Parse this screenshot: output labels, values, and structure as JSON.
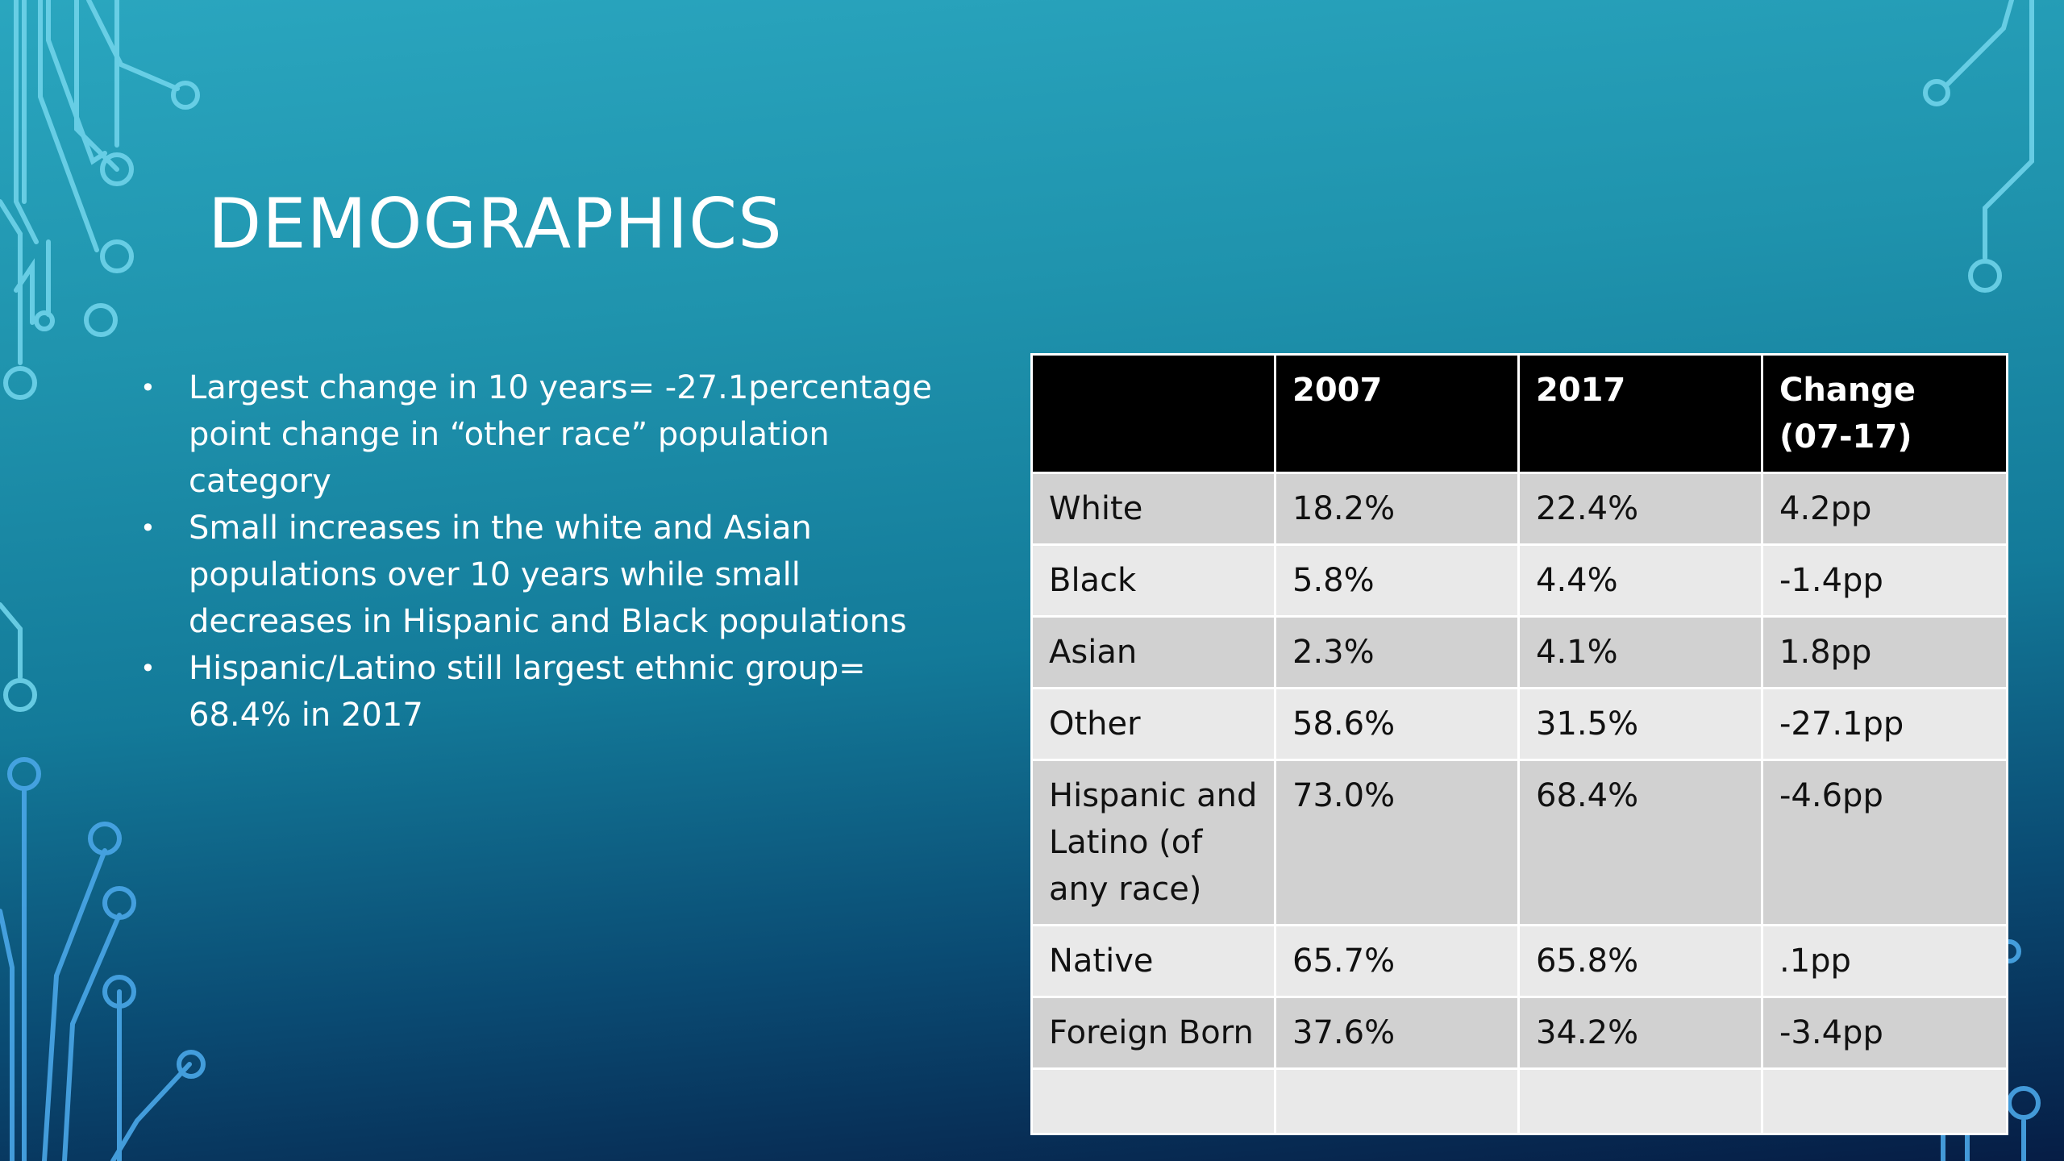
{
  "slide": {
    "title": "DEMOGRAPHICS"
  },
  "bullets": [
    "Largest change in 10 years= -27.1percentage point change in “other race” population category",
    "Small increases in the white and Asian populations over 10 years while small decreases in Hispanic and Black populations",
    "Hispanic/Latino still largest ethnic group= 68.4% in 2017"
  ],
  "table": {
    "headers": [
      "",
      "2007",
      "2017",
      "Change (07-17)"
    ],
    "rows": [
      [
        "White",
        "18.2%",
        "22.4%",
        "4.2pp"
      ],
      [
        "Black",
        "5.8%",
        "4.4%",
        "-1.4pp"
      ],
      [
        "Asian",
        "2.3%",
        "4.1%",
        "1.8pp"
      ],
      [
        "Other",
        "58.6%",
        "31.5%",
        "-27.1pp"
      ],
      [
        "Hispanic and Latino (of any race)",
        "73.0%",
        "68.4%",
        "-4.6pp"
      ],
      [
        "Native",
        "65.7%",
        "65.8%",
        ".1pp"
      ],
      [
        "Foreign Born",
        "37.6%",
        "34.2%",
        "-3.4pp"
      ],
      [
        "",
        "",
        "",
        ""
      ]
    ]
  },
  "colors": {
    "header_bg": "#000000",
    "row_dark": "#d1d1d1",
    "row_light": "#e9e9e9",
    "circuit_line": "#6fd3ea"
  }
}
